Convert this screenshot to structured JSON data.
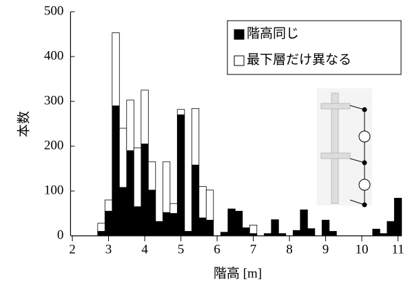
{
  "chart_data": {
    "type": "histogram",
    "xlabel": "階高 [m]",
    "ylabel": "本数",
    "bins": [
      2.7,
      2.9,
      3.1,
      3.3,
      3.5,
      3.7,
      3.9,
      4.1,
      4.3,
      4.5,
      4.7,
      4.9,
      5.1,
      5.3,
      5.5,
      5.7,
      5.9,
      6.1,
      6.3,
      6.5,
      6.7,
      6.9,
      7.1,
      7.3,
      7.5,
      7.7,
      7.9,
      8.1,
      8.3,
      8.5,
      8.7,
      8.9,
      9.1,
      9.3,
      9.5,
      9.7,
      9.9,
      10.1,
      10.3,
      10.5,
      10.7,
      10.9,
      11.1
    ],
    "series": [
      {
        "name": "階高同じ",
        "color": "#000000",
        "values": [
          10,
          55,
          290,
          108,
          190,
          65,
          205,
          102,
          32,
          52,
          50,
          270,
          10,
          158,
          40,
          35,
          0,
          8,
          60,
          55,
          18,
          5,
          0,
          5,
          36,
          5,
          0,
          12,
          58,
          16,
          0,
          35,
          10,
          0,
          0,
          0,
          0,
          0,
          15,
          5,
          32,
          84
        ]
      },
      {
        "name": "最下層だけ異なる",
        "color": "#ffffff",
        "values": [
          18,
          25,
          163,
          132,
          113,
          131,
          120,
          63,
          0,
          113,
          22,
          12,
          0,
          126,
          70,
          67,
          0,
          0,
          0,
          0,
          0,
          19,
          0,
          0,
          0,
          0,
          0,
          0,
          0,
          0,
          0,
          0,
          0,
          0,
          0,
          0,
          0,
          0,
          0,
          0,
          0,
          0
        ]
      }
    ],
    "xlim": [
      1.95,
      11.1
    ],
    "xticks": [
      2,
      3,
      4,
      5,
      6,
      7,
      8,
      9,
      10,
      11
    ],
    "ylim": [
      0,
      500
    ],
    "yticks": [
      0,
      100,
      200,
      300,
      400,
      500
    ],
    "stacked": true,
    "grid": false,
    "legend": "upper right"
  }
}
